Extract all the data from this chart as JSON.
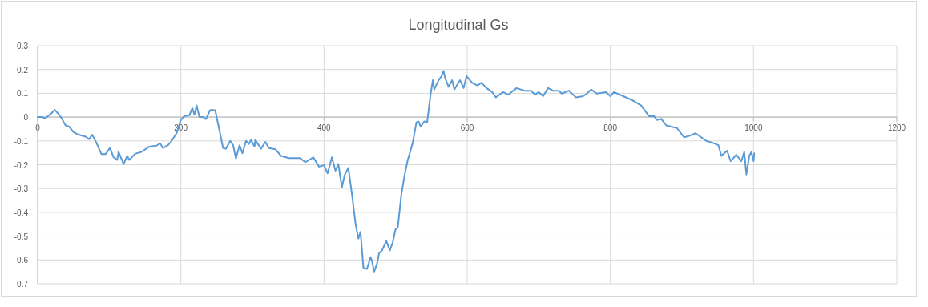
{
  "chart_data": {
    "type": "line",
    "title": "Longitudinal Gs",
    "x": [
      0,
      7,
      10,
      16,
      24,
      27,
      33,
      39,
      44,
      50,
      57,
      67,
      72,
      76,
      82,
      89,
      95,
      101,
      106,
      111,
      113,
      120,
      125,
      128,
      136,
      145,
      156,
      166,
      171,
      175,
      182,
      187,
      194,
      200,
      205,
      212,
      216,
      219,
      222,
      226,
      231,
      235,
      241,
      248,
      254,
      259,
      263,
      269,
      273,
      277,
      282,
      286,
      291,
      295,
      298,
      303,
      304,
      312,
      318,
      323,
      332,
      340,
      351,
      366,
      374,
      385,
      393,
      400,
      405,
      411,
      416,
      420,
      425,
      429,
      434,
      440,
      444,
      448,
      451,
      455,
      460,
      465,
      467,
      470,
      474,
      477,
      481,
      487,
      492,
      496,
      500,
      503,
      508,
      513,
      517,
      524,
      529,
      532,
      535,
      540,
      544,
      549,
      552,
      554,
      560,
      564,
      567,
      569,
      574,
      579,
      582,
      590,
      595,
      599,
      607,
      614,
      620,
      627,
      635,
      640,
      650,
      657,
      669,
      680,
      689,
      695,
      700,
      706,
      713,
      720,
      728,
      732,
      742,
      752,
      762,
      767,
      773,
      781,
      794,
      800,
      805,
      818,
      830,
      843,
      854,
      861,
      865,
      871,
      878,
      893,
      903,
      910,
      919,
      934,
      942,
      951,
      955,
      963,
      968,
      976,
      983,
      987,
      990,
      994,
      997,
      1000,
      1001
    ],
    "series": [
      {
        "color": "#5b9bd5",
        "values": [
          0,
          0,
          -0.005,
          0.007,
          0.03,
          0.02,
          -0.003,
          -0.035,
          -0.04,
          -0.063,
          -0.074,
          -0.082,
          -0.093,
          -0.074,
          -0.107,
          -0.155,
          -0.155,
          -0.13,
          -0.169,
          -0.18,
          -0.146,
          -0.197,
          -0.163,
          -0.18,
          -0.154,
          -0.146,
          -0.124,
          -0.12,
          -0.11,
          -0.13,
          -0.118,
          -0.1,
          -0.068,
          -0.012,
          0.004,
          0.008,
          0.038,
          0.01,
          0.049,
          0,
          0,
          -0.009,
          0.03,
          0.029,
          -0.057,
          -0.13,
          -0.133,
          -0.1,
          -0.118,
          -0.174,
          -0.118,
          -0.152,
          -0.1,
          -0.113,
          -0.096,
          -0.124,
          -0.096,
          -0.133,
          -0.104,
          -0.13,
          -0.135,
          -0.163,
          -0.172,
          -0.172,
          -0.189,
          -0.169,
          -0.208,
          -0.202,
          -0.236,
          -0.169,
          -0.225,
          -0.197,
          -0.295,
          -0.241,
          -0.213,
          -0.347,
          -0.448,
          -0.51,
          -0.482,
          -0.632,
          -0.638,
          -0.588,
          -0.604,
          -0.649,
          -0.616,
          -0.571,
          -0.56,
          -0.52,
          -0.56,
          -0.526,
          -0.47,
          -0.465,
          -0.325,
          -0.236,
          -0.18,
          -0.107,
          -0.023,
          -0.018,
          -0.04,
          -0.018,
          -0.023,
          0.099,
          0.155,
          0.116,
          0.155,
          0.172,
          0.194,
          0.166,
          0.127,
          0.155,
          0.116,
          0.155,
          0.122,
          0.172,
          0.144,
          0.133,
          0.144,
          0.122,
          0.105,
          0.083,
          0.105,
          0.094,
          0.122,
          0.111,
          0.111,
          0.094,
          0.105,
          0.088,
          0.122,
          0.111,
          0.111,
          0.099,
          0.111,
          0.083,
          0.088,
          0.099,
          0.116,
          0.099,
          0.105,
          0.088,
          0.105,
          0.088,
          0.072,
          0.049,
          0.004,
          0.004,
          -0.012,
          -0.007,
          -0.035,
          -0.046,
          -0.085,
          -0.079,
          -0.068,
          -0.1,
          -0.107,
          -0.118,
          -0.163,
          -0.141,
          -0.185,
          -0.158,
          -0.185,
          -0.146,
          -0.241,
          -0.163,
          -0.146,
          -0.185,
          -0.152
        ]
      }
    ],
    "xlim": [
      0,
      1200
    ],
    "xticks": [
      0,
      200,
      400,
      600,
      800,
      1000,
      1200
    ],
    "ylim": [
      -0.7,
      0.3
    ],
    "yticks": [
      -0.7,
      -0.6,
      -0.5,
      -0.4,
      -0.3,
      -0.2,
      -0.1,
      0,
      0.1,
      0.2,
      0.3
    ],
    "grid": true,
    "marker": "none",
    "line_style": "solid"
  }
}
